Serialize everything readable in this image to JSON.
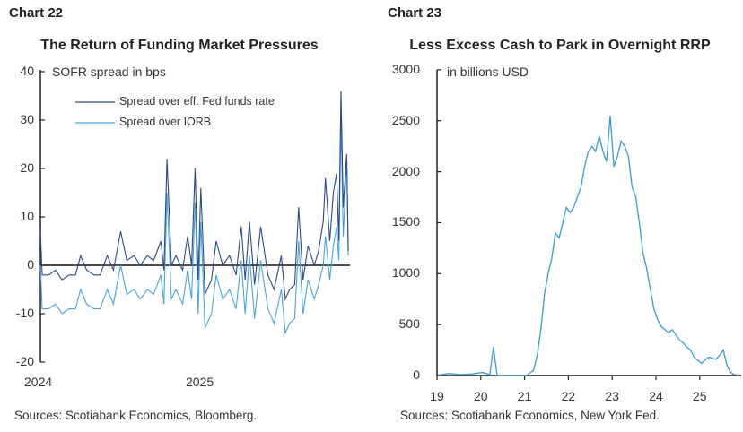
{
  "chart_data": [
    {
      "type": "line",
      "label": "Chart 22",
      "title": "The Return of Funding Market Pressures",
      "ylabel": "SOFR spread in bps",
      "ylim": [
        -20,
        40
      ],
      "yticks": [
        40,
        30,
        20,
        10,
        0,
        -10,
        -20
      ],
      "xticks": [
        "2024",
        "2025"
      ],
      "legend_position": "top-left",
      "source": "Sources: Scotiabank Economics,  Bloomberg.",
      "x": [
        "2024-01-01",
        "2024-01-05",
        "2024-01-20",
        "2024-02-05",
        "2024-02-20",
        "2024-03-05",
        "2024-03-20",
        "2024-04-01",
        "2024-04-15",
        "2024-05-01",
        "2024-05-15",
        "2024-06-01",
        "2024-06-15",
        "2024-07-01",
        "2024-07-15",
        "2024-08-01",
        "2024-08-15",
        "2024-09-01",
        "2024-09-15",
        "2024-10-01",
        "2024-10-08",
        "2024-10-15",
        "2024-10-25",
        "2024-11-05",
        "2024-11-20",
        "2024-12-01",
        "2024-12-10",
        "2024-12-18",
        "2024-12-25",
        "2024-12-31",
        "2025-01-10",
        "2025-01-25",
        "2025-02-05",
        "2025-02-20",
        "2025-03-05",
        "2025-03-20",
        "2025-04-01",
        "2025-04-10",
        "2025-04-20",
        "2025-05-01",
        "2025-05-15",
        "2025-06-01",
        "2025-06-15",
        "2025-07-01",
        "2025-07-10",
        "2025-07-20",
        "2025-08-01",
        "2025-08-10",
        "2025-08-20",
        "2025-09-01",
        "2025-09-15",
        "2025-09-25",
        "2025-10-05",
        "2025-10-10",
        "2025-10-20",
        "2025-10-28",
        "2025-11-05",
        "2025-11-10",
        "2025-11-15",
        "2025-11-20",
        "2025-11-28",
        "2025-12-01"
      ],
      "series": [
        {
          "name": "Spread over eff. Fed funds rate",
          "color": "#2b4a86",
          "values": [
            7,
            -2,
            -2,
            -1,
            -3,
            -2,
            -2,
            2,
            -1,
            -2,
            -2,
            2,
            -1,
            7,
            1,
            2,
            0,
            2,
            1,
            5,
            -1,
            22,
            0,
            2,
            -1,
            6,
            0,
            20,
            -3,
            16,
            -6,
            -3,
            5,
            0,
            2,
            -2,
            8,
            -3,
            9,
            -4,
            8,
            -2,
            -5,
            2,
            -7,
            -5,
            -4,
            12,
            -3,
            4,
            0,
            3,
            9,
            18,
            5,
            15,
            19,
            5,
            36,
            12,
            23,
            3
          ]
        },
        {
          "name": "Spread over IORB",
          "color": "#4aa3d8",
          "values": [
            0,
            -9,
            -9,
            -8,
            -10,
            -9,
            -9,
            -5,
            -8,
            -9,
            -9,
            -5,
            -8,
            0,
            -6,
            -5,
            -7,
            -5,
            -6,
            -2,
            -8,
            15,
            -7,
            -5,
            -8,
            -1,
            -7,
            13,
            -10,
            9,
            -13,
            -10,
            -2,
            -7,
            -5,
            -9,
            1,
            -10,
            2,
            -11,
            1,
            -9,
            -12,
            -5,
            -14,
            -12,
            -11,
            5,
            -10,
            -3,
            -7,
            -4,
            0,
            6,
            -3,
            4,
            8,
            1,
            30,
            6,
            22,
            2
          ]
        }
      ]
    },
    {
      "type": "line",
      "label": "Chart 23",
      "title": "Less Excess Cash to Park in Overnight RRP",
      "ylabel": "in billions USD",
      "ylim": [
        0,
        3000
      ],
      "yticks": [
        3000,
        2500,
        2000,
        1500,
        1000,
        500,
        0
      ],
      "xticks": [
        "19",
        "20",
        "21",
        "22",
        "23",
        "24",
        "25"
      ],
      "source": "Sources: Scotiabank Economics, New York Fed.",
      "x": [
        "2019-01",
        "2019-04",
        "2019-07",
        "2019-10",
        "2020-01",
        "2020-03",
        "2020-04",
        "2020-05",
        "2020-07",
        "2020-10",
        "2021-01",
        "2021-03",
        "2021-04",
        "2021-05",
        "2021-06",
        "2021-07",
        "2021-08",
        "2021-09",
        "2021-10",
        "2021-11",
        "2021-12",
        "2022-01",
        "2022-02",
        "2022-03",
        "2022-04",
        "2022-05",
        "2022-06",
        "2022-07",
        "2022-08",
        "2022-09",
        "2022-10",
        "2022-11",
        "2022-12",
        "2023-01",
        "2023-02",
        "2023-03",
        "2023-04",
        "2023-05",
        "2023-06",
        "2023-07",
        "2023-08",
        "2023-09",
        "2023-10",
        "2023-11",
        "2023-12",
        "2024-01",
        "2024-02",
        "2024-03",
        "2024-04",
        "2024-05",
        "2024-06",
        "2024-07",
        "2024-08",
        "2024-09",
        "2024-10",
        "2024-11",
        "2024-12",
        "2025-01",
        "2025-02",
        "2025-03",
        "2025-04",
        "2025-05",
        "2025-06",
        "2025-07",
        "2025-08",
        "2025-09",
        "2025-10",
        "2025-11"
      ],
      "series": [
        {
          "color": "#3d9ad0",
          "values": [
            5,
            20,
            10,
            15,
            30,
            10,
            280,
            5,
            0,
            0,
            0,
            50,
            200,
            450,
            800,
            1000,
            1150,
            1400,
            1350,
            1500,
            1650,
            1600,
            1650,
            1750,
            1850,
            2050,
            2200,
            2250,
            2200,
            2350,
            2200,
            2100,
            2550,
            2050,
            2150,
            2300,
            2250,
            2150,
            1850,
            1750,
            1500,
            1200,
            1050,
            850,
            650,
            550,
            480,
            450,
            420,
            450,
            400,
            350,
            320,
            280,
            250,
            180,
            150,
            120,
            150,
            180,
            170,
            160,
            200,
            250,
            100,
            30,
            10,
            5
          ]
        }
      ]
    }
  ]
}
